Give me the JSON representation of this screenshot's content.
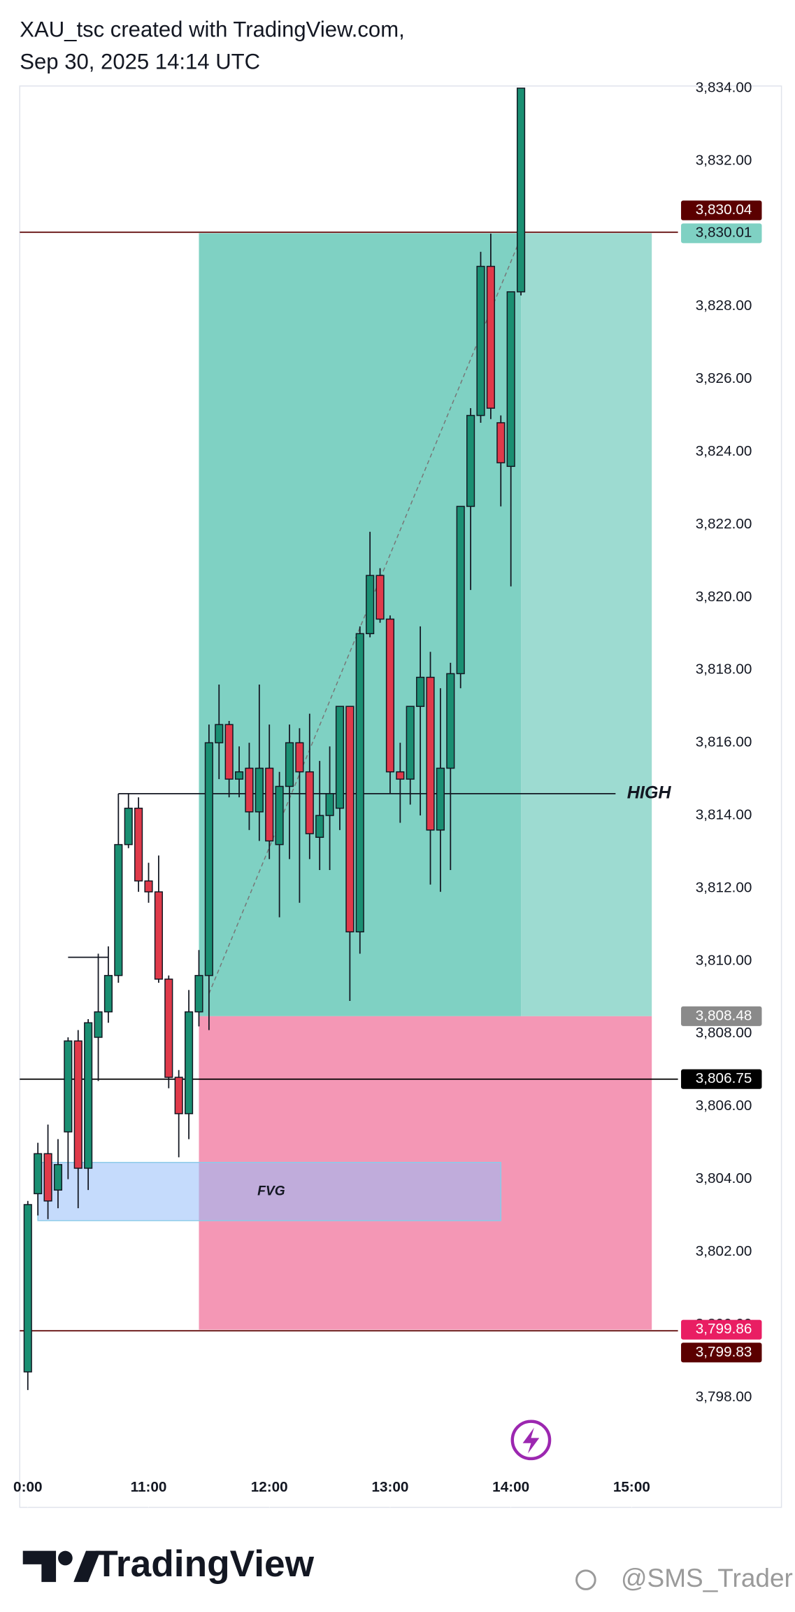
{
  "chart_data": {
    "type": "candlestick",
    "title": "XAU_tsc created with TradingView.com,",
    "subtitle": "Sep 30, 2025 14:14 UTC",
    "x": [
      "10:00",
      "10:05",
      "10:10",
      "10:15",
      "10:20",
      "10:25",
      "10:30",
      "10:35",
      "10:40",
      "10:45",
      "10:50",
      "10:55",
      "11:00",
      "11:05",
      "11:10",
      "11:15",
      "11:20",
      "11:25",
      "11:30",
      "11:35",
      "11:40",
      "11:45",
      "11:50",
      "11:55",
      "12:00",
      "12:05",
      "12:10",
      "12:15",
      "12:20",
      "12:25",
      "12:30",
      "12:35",
      "12:40",
      "12:45",
      "12:50",
      "12:55",
      "13:00",
      "13:05",
      "13:10",
      "13:15",
      "13:20",
      "13:25",
      "13:30",
      "13:35",
      "13:40",
      "13:45",
      "13:50",
      "13:55",
      "14:00",
      "14:05"
    ],
    "open": [
      3798.7,
      3803.6,
      3804.7,
      3803.7,
      3805.3,
      3807.8,
      3804.3,
      3807.9,
      3808.6,
      3809.6,
      3813.2,
      3814.2,
      3812.2,
      3811.9,
      3809.5,
      3806.8,
      3805.8,
      3808.6,
      3809.6,
      3816.0,
      3816.5,
      3815.0,
      3815.3,
      3814.1,
      3815.3,
      3813.2,
      3814.8,
      3816.0,
      3815.2,
      3813.4,
      3814.0,
      3814.2,
      3817.0,
      3810.8,
      3819.0,
      3820.6,
      3819.4,
      3815.2,
      3815.0,
      3817.0,
      3817.8,
      3813.6,
      3815.3,
      3817.9,
      3822.5,
      3825.0,
      3829.1,
      3824.8,
      3823.6,
      3828.4
    ],
    "high": [
      3803.4,
      3805.0,
      3805.5,
      3805.1,
      3807.9,
      3808.1,
      3808.4,
      3810.2,
      3810.4,
      3814.6,
      3814.6,
      3814.5,
      3812.7,
      3812.9,
      3809.6,
      3807.0,
      3809.2,
      3810.3,
      3816.5,
      3817.6,
      3816.6,
      3815.9,
      3816.0,
      3817.6,
      3816.5,
      3815.2,
      3816.5,
      3816.4,
      3816.8,
      3815.5,
      3815.9,
      3817.0,
      3817.0,
      3819.2,
      3821.8,
      3820.8,
      3819.5,
      3816.0,
      3817.0,
      3819.2,
      3818.5,
      3817.5,
      3818.2,
      3822.5,
      3825.2,
      3829.5,
      3830.0,
      3825.0,
      3828.4,
      3834.0
    ],
    "low": [
      3798.2,
      3803.0,
      3802.9,
      3803.2,
      3804.0,
      3803.2,
      3803.7,
      3806.7,
      3808.3,
      3809.4,
      3813.1,
      3811.9,
      3811.6,
      3809.4,
      3806.5,
      3804.6,
      3805.1,
      3808.2,
      3808.1,
      3815.0,
      3814.5,
      3814.5,
      3813.6,
      3813.3,
      3812.8,
      3811.2,
      3812.8,
      3811.6,
      3812.8,
      3812.5,
      3812.5,
      3813.6,
      3808.9,
      3810.2,
      3818.9,
      3819.3,
      3814.6,
      3813.8,
      3814.3,
      3814.0,
      3812.1,
      3811.9,
      3812.5,
      3817.5,
      3820.2,
      3824.8,
      3824.9,
      3822.5,
      3820.3,
      3828.3
    ],
    "close": [
      3803.3,
      3804.7,
      3803.4,
      3804.4,
      3807.8,
      3804.3,
      3808.3,
      3808.6,
      3809.6,
      3813.2,
      3814.2,
      3812.2,
      3811.9,
      3809.5,
      3806.8,
      3805.8,
      3808.6,
      3809.6,
      3816.0,
      3816.5,
      3815.0,
      3815.2,
      3814.1,
      3815.3,
      3813.3,
      3814.8,
      3816.0,
      3815.2,
      3813.5,
      3814.0,
      3814.6,
      3817.0,
      3810.8,
      3819.0,
      3820.6,
      3819.4,
      3815.2,
      3815.0,
      3817.0,
      3817.8,
      3813.6,
      3815.3,
      3817.9,
      3822.5,
      3825.0,
      3829.1,
      3825.2,
      3823.7,
      3828.4,
      3834.0
    ],
    "up_color": "#1a8f72",
    "down_color": "#e03a4a",
    "xlim": [
      "09:56",
      "15:23"
    ],
    "xticks": [
      {
        "value": "10:00",
        "label": "0:00"
      },
      "11:00",
      "12:00",
      "13:00",
      "14:00",
      "15:00"
    ],
    "ylim": [
      3796,
      3834.06
    ],
    "yticks": [
      {
        "value": 3798,
        "label": "3,798.00"
      },
      {
        "value": 3800,
        "label": "3,800.00"
      },
      {
        "value": 3802,
        "label": "3,802.00"
      },
      {
        "value": 3804,
        "label": "3,804.00"
      },
      {
        "value": 3806,
        "label": "3,806.00"
      },
      {
        "value": 3808,
        "label": "3,808.00"
      },
      {
        "value": 3810,
        "label": "3,810.00"
      },
      {
        "value": 3812,
        "label": "3,812.00"
      },
      {
        "value": 3814,
        "label": "3,814.00"
      },
      {
        "value": 3816,
        "label": "3,816.00"
      },
      {
        "value": 3818,
        "label": "3,818.00"
      },
      {
        "value": 3820,
        "label": "3,820.00"
      },
      {
        "value": 3822,
        "label": "3,822.00"
      },
      {
        "value": 3824,
        "label": "3,824.00"
      },
      {
        "value": 3826,
        "label": "3,826.00"
      },
      {
        "value": 3828,
        "label": "3,828.00"
      },
      {
        "value": 3830,
        "label": "3,830.00"
      },
      {
        "value": 3832,
        "label": "3,832.00"
      },
      {
        "value": 3834,
        "label": "3,834.00"
      }
    ],
    "position": {
      "start": "11:25",
      "filled_end": "14:05",
      "end": "15:10",
      "target": 3830.01,
      "entry": 3808.48,
      "stop": 3799.86,
      "profit_color": "#7fd1c3",
      "profit_rest_color": "#9ddbd1",
      "loss_color": "#f497b5"
    },
    "fvg": {
      "label": "FVG",
      "start": "10:05",
      "end": "13:55",
      "top": 3804.46,
      "bottom": 3802.86
    },
    "high_line": {
      "label": "HIGH",
      "value": 3814.6,
      "start": "10:45",
      "end": "14:52"
    },
    "level": {
      "value": 3810.1,
      "start": "10:20",
      "end": "10:40"
    },
    "trend_line": {
      "from": [
        "11:30",
        3809.1
      ],
      "to": [
        "14:05",
        3829.9
      ]
    },
    "price_labels": [
      {
        "value": 3830.04,
        "label": "3,830.04",
        "color": "#5b0000",
        "text_color": "#ffffff",
        "line": true
      },
      {
        "value": 3830.01,
        "label": "3,830.01",
        "color": "#7fd1c3",
        "text_color": "#131722",
        "line": false
      },
      {
        "value": 3808.48,
        "label": "3,808.48",
        "color": "#8a8a8a",
        "text_color": "#ffffff",
        "line": false
      },
      {
        "value": 3806.75,
        "label": "3,806.75",
        "color": "#000000",
        "text_color": "#ffffff",
        "line": true
      },
      {
        "value": 3799.86,
        "label": "3,799.86",
        "color": "#e91e63",
        "text_color": "#ffffff",
        "line": false
      },
      {
        "value": 3799.83,
        "label": "3,799.83",
        "color": "#5b0000",
        "text_color": "#ffffff",
        "line": true
      }
    ],
    "footer": {
      "brand": "TradingView",
      "watermark": "@SMS_Trader"
    }
  }
}
